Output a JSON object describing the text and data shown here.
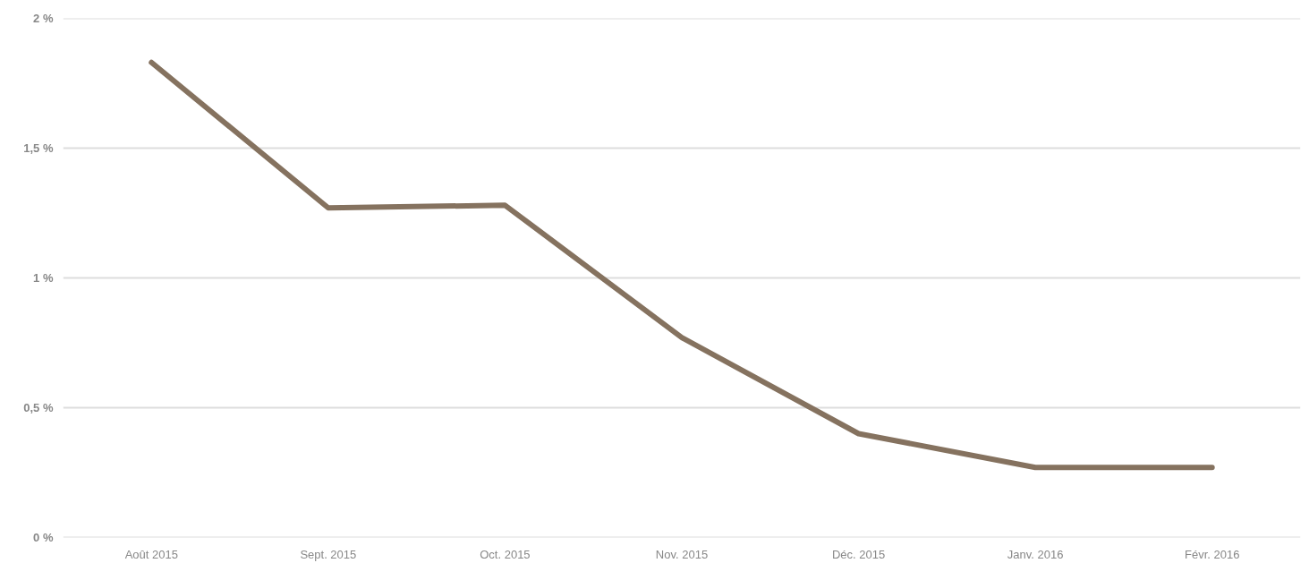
{
  "chart_data": {
    "type": "line",
    "categories": [
      "Août 2015",
      "Sept. 2015",
      "Oct. 2015",
      "Nov. 2015",
      "Déc. 2015",
      "Janv. 2016",
      "Févr. 2016"
    ],
    "series": [
      {
        "color": "#85725f",
        "values": [
          1.83,
          1.27,
          1.28,
          0.77,
          0.4,
          0.27,
          0.27
        ]
      }
    ],
    "ylim": [
      0,
      2
    ],
    "yticks": [
      {
        "value": 0,
        "label": "0 %"
      },
      {
        "value": 0.5,
        "label": "0,5 %"
      },
      {
        "value": 1,
        "label": "1 %"
      },
      {
        "value": 1.5,
        "label": "1,5 %"
      },
      {
        "value": 2,
        "label": "2 %"
      }
    ],
    "grid": "y",
    "marker": "none",
    "line_style": "solid"
  }
}
